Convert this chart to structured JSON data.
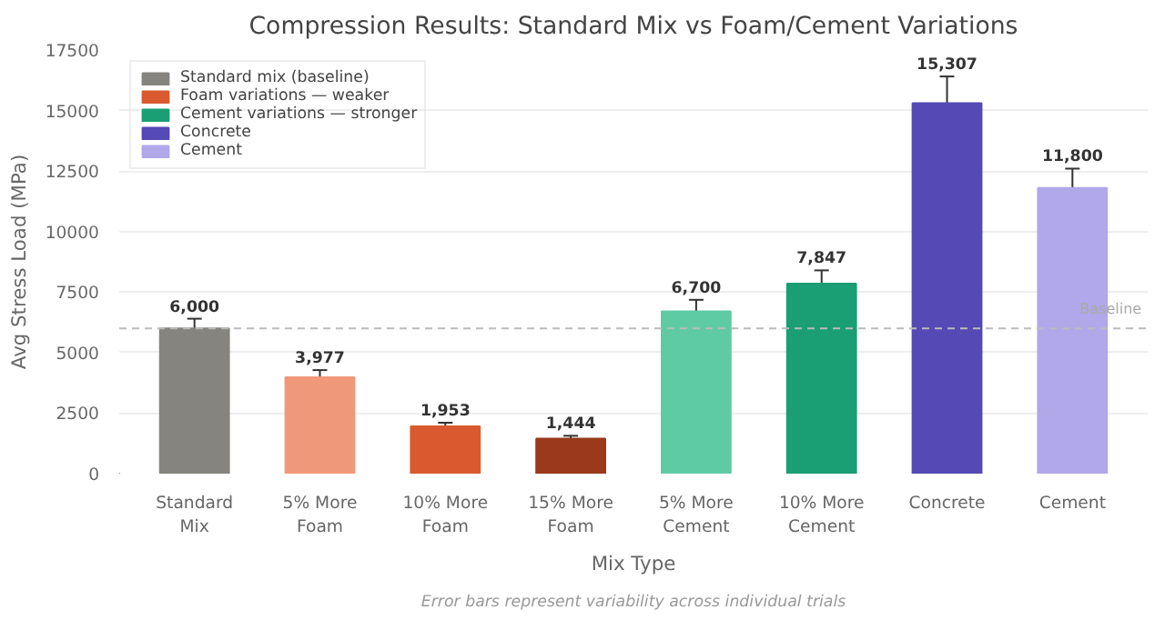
{
  "chart_data": {
    "type": "bar",
    "title": "Compression Results: Standard Mix vs Foam/Cement Variations",
    "xlabel": "Mix Type",
    "ylabel": "Avg Stress Load (MPa)",
    "categories": [
      "Standard Mix",
      "5% More Foam",
      "10% More Foam",
      "15% More Foam",
      "5% More Cement",
      "10% More Cement",
      "Concrete",
      "Cement"
    ],
    "series": [
      {
        "name": "Standard mix (baseline)",
        "color": "#85847e",
        "colors": [
          "#85847e",
          null,
          null,
          null,
          null,
          null,
          null,
          null
        ],
        "values": [
          6000,
          null,
          null,
          null,
          null,
          null,
          null,
          null
        ],
        "errors": [
          400,
          null,
          null,
          null,
          null,
          null,
          null,
          null
        ],
        "value_labels": [
          "6,000",
          null,
          null,
          null,
          null,
          null,
          null,
          null
        ]
      },
      {
        "name": "Foam variations — weaker",
        "color": "#d95a2e",
        "colors": [
          null,
          "#f0997a",
          "#d95a2e",
          "#9a3a1a",
          null,
          null,
          null,
          null
        ],
        "values": [
          null,
          3977,
          1953,
          1444,
          null,
          null,
          null,
          null
        ],
        "errors": [
          null,
          300,
          150,
          120,
          null,
          null,
          null,
          null
        ],
        "value_labels": [
          null,
          "3,977",
          "1,953",
          "1,444",
          null,
          null,
          null,
          null
        ]
      },
      {
        "name": "Cement variations — stronger",
        "color": "#1a9e74",
        "colors": [
          null,
          null,
          null,
          null,
          "#5fcba4",
          "#1a9e74",
          null,
          null
        ],
        "values": [
          null,
          null,
          null,
          null,
          6700,
          7847,
          null,
          null
        ],
        "errors": [
          null,
          null,
          null,
          null,
          480,
          550,
          null,
          null
        ],
        "value_labels": [
          null,
          null,
          null,
          null,
          "6,700",
          "7,847",
          null,
          null
        ]
      },
      {
        "name": "Concrete",
        "color": "#5549b5",
        "colors": [
          null,
          null,
          null,
          null,
          null,
          null,
          "#5549b5",
          null
        ],
        "values": [
          null,
          null,
          null,
          null,
          null,
          null,
          15307,
          null
        ],
        "errors": [
          null,
          null,
          null,
          null,
          null,
          null,
          1100,
          null
        ],
        "value_labels": [
          null,
          null,
          null,
          null,
          null,
          null,
          "15,307",
          null
        ]
      },
      {
        "name": "Cement",
        "color": "#b0a8e8",
        "colors": [
          null,
          null,
          null,
          null,
          null,
          null,
          null,
          "#b0a8e8"
        ],
        "values": [
          null,
          null,
          null,
          null,
          null,
          null,
          null,
          11800
        ],
        "errors": [
          null,
          null,
          null,
          null,
          null,
          null,
          null,
          800
        ],
        "value_labels": [
          null,
          null,
          null,
          null,
          null,
          null,
          null,
          "11,800"
        ]
      }
    ],
    "ylim": [
      0,
      17500
    ],
    "yticks": [
      0,
      2500,
      5000,
      7500,
      10000,
      12500,
      15000,
      17500
    ],
    "ref_lines": [
      {
        "axis": "y",
        "value": 6000,
        "label": "Baseline",
        "color": "#bbbbbb",
        "line_style": "dashed"
      }
    ],
    "annotations": [
      "Error bars represent variability across individual trials"
    ],
    "grid": "y",
    "legend": "top left"
  }
}
